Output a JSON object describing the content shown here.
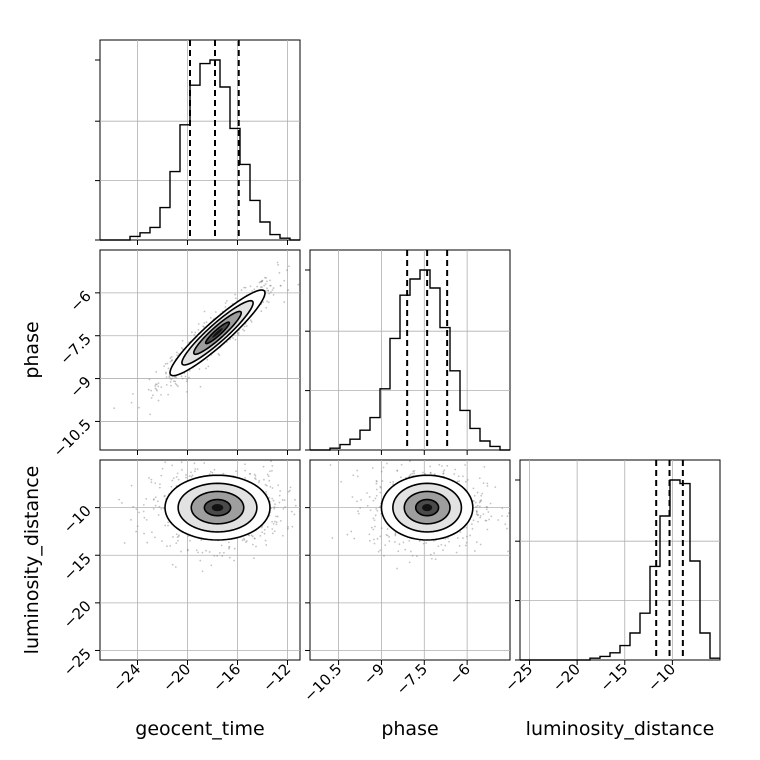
{
  "chart_data": {
    "type": "corner",
    "parameters": [
      "geocent_time",
      "phase",
      "luminosity_distance"
    ],
    "axis_labels": {
      "geocent_time": "geocent_time",
      "phase": "phase",
      "luminosity_distance": "luminosity_distance"
    },
    "ranges": {
      "geocent_time": [
        -27,
        -11
      ],
      "phase": [
        -11.5,
        -4.5
      ],
      "luminosity_distance": [
        -26,
        -5
      ]
    },
    "ticks": {
      "geocent_time": [
        -24,
        -20,
        -16,
        -12
      ],
      "phase": [
        -10.5,
        -9.0,
        -7.5,
        -6.0
      ],
      "luminosity_distance": [
        -25,
        -20,
        -15,
        -10
      ]
    },
    "quantiles": {
      "geocent_time": [
        -19.8,
        -17.8,
        -15.9
      ],
      "phase": [
        -8.1,
        -7.4,
        -6.7
      ],
      "luminosity_distance": [
        -11.7,
        -10.3,
        -8.9
      ]
    },
    "histograms": {
      "geocent_time": {
        "edges": [
          -27,
          -26.2,
          -25.4,
          -24.6,
          -23.8,
          -23.0,
          -22.2,
          -21.4,
          -20.6,
          -19.8,
          -19.0,
          -18.2,
          -17.4,
          -16.6,
          -15.8,
          -15.0,
          -14.2,
          -13.4,
          -12.6,
          -11.8,
          -11.0
        ],
        "counts": [
          0,
          0,
          0,
          2,
          4,
          7,
          18,
          38,
          64,
          86,
          98,
          100,
          85,
          62,
          42,
          22,
          10,
          3,
          1,
          0
        ]
      },
      "phase": {
        "edges": [
          -11.5,
          -11.15,
          -10.8,
          -10.45,
          -10.1,
          -9.75,
          -9.4,
          -9.05,
          -8.7,
          -8.35,
          -8.0,
          -7.65,
          -7.3,
          -6.95,
          -6.6,
          -6.25,
          -5.9,
          -5.55,
          -5.2,
          -4.85,
          -4.5
        ],
        "counts": [
          0,
          0,
          1,
          3,
          6,
          11,
          18,
          34,
          62,
          86,
          95,
          100,
          90,
          68,
          44,
          22,
          12,
          5,
          2,
          0
        ]
      },
      "luminosity_distance": {
        "edges": [
          -26,
          -24.95,
          -23.9,
          -22.85,
          -21.8,
          -20.75,
          -19.7,
          -18.65,
          -17.6,
          -16.55,
          -15.5,
          -14.45,
          -13.4,
          -12.35,
          -11.3,
          -10.25,
          -9.2,
          -8.15,
          -7.1,
          -6.05,
          -5.0
        ],
        "counts": [
          0,
          0,
          0,
          0,
          0,
          0,
          0,
          1,
          2,
          4,
          8,
          15,
          26,
          52,
          80,
          100,
          98,
          55,
          15,
          1
        ]
      }
    },
    "pairs": [
      {
        "x": "geocent_time",
        "y": "phase",
        "mean": [
          -17.6,
          -7.4
        ],
        "sd": [
          1.9,
          0.75
        ],
        "rho": 0.93,
        "scatter_n": 650,
        "contour_levels": [
          0.5,
          1.0,
          1.5,
          2.0
        ]
      },
      {
        "x": "geocent_time",
        "y": "luminosity_distance",
        "mean": [
          -17.6,
          -10.0
        ],
        "sd": [
          2.1,
          1.7
        ],
        "rho": 0.0,
        "scatter_n": 750,
        "contour_levels": [
          0.5,
          1.0,
          1.5,
          2.0
        ]
      },
      {
        "x": "phase",
        "y": "luminosity_distance",
        "mean": [
          -7.4,
          -10.0
        ],
        "sd": [
          0.8,
          1.7
        ],
        "rho": 0.0,
        "scatter_n": 750,
        "contour_levels": [
          0.5,
          1.0,
          1.5,
          2.0
        ]
      }
    ],
    "colors": {
      "line": "#000000",
      "scatter": "#7a7a7a",
      "grid": "#b0b0b0"
    }
  }
}
